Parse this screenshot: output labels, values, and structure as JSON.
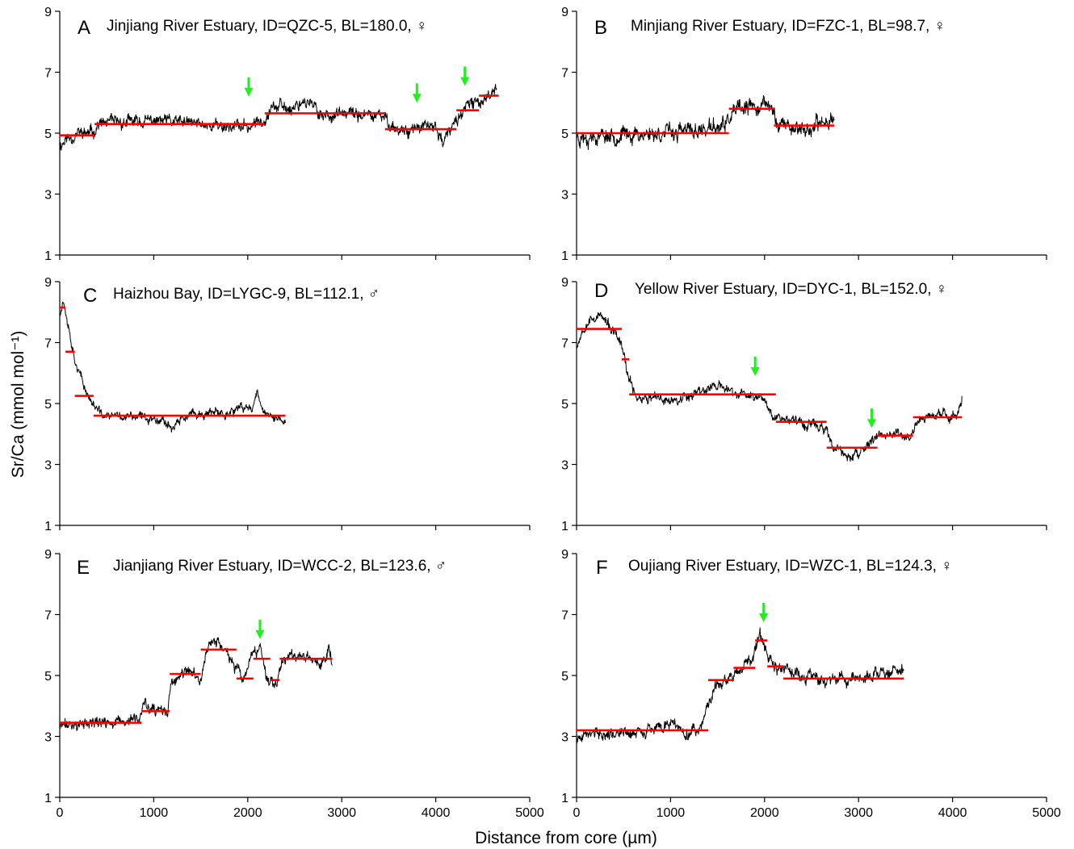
{
  "figure": {
    "ylabel": "Sr/Ca (mmol mol⁻¹)",
    "xlabel": "Distance from core (µm)",
    "series_color": "#000000",
    "segment_color": "#ff0000",
    "arrow_color": "#22ee22"
  },
  "chart_data": [
    {
      "type": "line",
      "letter": "A",
      "title": "Jinjiang River Estuary, ID=QZC-5, BL=180.0, ♀",
      "xlim": [
        0,
        5000
      ],
      "ylim": [
        1,
        9
      ],
      "xticks": [
        0,
        1000,
        2000,
        3000,
        4000,
        5000
      ],
      "yticks": [
        1,
        3,
        5,
        7,
        9
      ],
      "show_xtick_labels": false,
      "trace_end_um": 4650,
      "noise_amplitude": 0.22,
      "seed": 11,
      "profile": [
        [
          0,
          4.6
        ],
        [
          60,
          4.8
        ],
        [
          200,
          5.0
        ],
        [
          350,
          5.0
        ],
        [
          400,
          5.3
        ],
        [
          1000,
          5.4
        ],
        [
          1500,
          5.3
        ],
        [
          2000,
          5.2
        ],
        [
          2150,
          5.4
        ],
        [
          2250,
          5.9
        ],
        [
          2450,
          5.8
        ],
        [
          2600,
          6.1
        ],
        [
          2800,
          5.6
        ],
        [
          3200,
          5.6
        ],
        [
          3450,
          5.5
        ],
        [
          3600,
          5.1
        ],
        [
          4000,
          5.2
        ],
        [
          4080,
          4.7
        ],
        [
          4200,
          5.3
        ],
        [
          4300,
          5.8
        ],
        [
          4450,
          6.0
        ],
        [
          4550,
          6.2
        ],
        [
          4650,
          6.6
        ]
      ],
      "segments": [
        {
          "x0": 0,
          "x1": 370,
          "y": 4.93
        },
        {
          "x0": 370,
          "x1": 2180,
          "y": 5.3
        },
        {
          "x0": 2180,
          "x1": 3460,
          "y": 5.65
        },
        {
          "x0": 3460,
          "x1": 4220,
          "y": 5.13
        },
        {
          "x0": 4220,
          "x1": 4460,
          "y": 5.75
        },
        {
          "x0": 4460,
          "x1": 4670,
          "y": 6.23
        }
      ],
      "arrows": [
        {
          "x": 2010,
          "y": 6.2
        },
        {
          "x": 3800,
          "y": 6.0
        },
        {
          "x": 4310,
          "y": 6.55
        }
      ]
    },
    {
      "type": "line",
      "letter": "B",
      "title": "Minjiang River Estuary, ID=FZC-1, BL=98.7, ♀",
      "xlim": [
        0,
        5000
      ],
      "ylim": [
        1,
        9
      ],
      "xticks": [
        0,
        1000,
        2000,
        3000,
        4000,
        5000
      ],
      "yticks": [
        1,
        3,
        5,
        7,
        9
      ],
      "show_xtick_labels": false,
      "trace_end_um": 2740,
      "noise_amplitude": 0.28,
      "seed": 23,
      "profile": [
        [
          0,
          4.9
        ],
        [
          500,
          4.95
        ],
        [
          1200,
          5.05
        ],
        [
          1550,
          5.2
        ],
        [
          1700,
          5.7
        ],
        [
          2000,
          5.95
        ],
        [
          2080,
          5.8
        ],
        [
          2150,
          5.3
        ],
        [
          2500,
          5.1
        ],
        [
          2740,
          5.6
        ]
      ],
      "segments": [
        {
          "x0": 0,
          "x1": 1620,
          "y": 5.0
        },
        {
          "x0": 1620,
          "x1": 2100,
          "y": 5.8
        },
        {
          "x0": 2100,
          "x1": 2740,
          "y": 5.25
        }
      ],
      "arrows": []
    },
    {
      "type": "line",
      "letter": "C",
      "title": "Haizhou Bay, ID=LYGC-9, BL=112.1, ♂",
      "xlim": [
        0,
        5000
      ],
      "ylim": [
        1,
        9
      ],
      "xticks": [
        0,
        1000,
        2000,
        3000,
        4000,
        5000
      ],
      "yticks": [
        1,
        3,
        5,
        7,
        9
      ],
      "show_xtick_labels": false,
      "trace_end_um": 2400,
      "noise_amplitude": 0.16,
      "seed": 37,
      "profile": [
        [
          0,
          8.0
        ],
        [
          40,
          8.4
        ],
        [
          80,
          7.8
        ],
        [
          150,
          6.6
        ],
        [
          250,
          5.6
        ],
        [
          350,
          5.0
        ],
        [
          450,
          4.6
        ],
        [
          1100,
          4.5
        ],
        [
          1200,
          4.2
        ],
        [
          1350,
          4.6
        ],
        [
          1800,
          4.7
        ],
        [
          2050,
          4.9
        ],
        [
          2100,
          5.4
        ],
        [
          2200,
          4.6
        ],
        [
          2400,
          4.4
        ]
      ],
      "segments": [
        {
          "x0": 0,
          "x1": 60,
          "y": 8.15
        },
        {
          "x0": 60,
          "x1": 160,
          "y": 6.7
        },
        {
          "x0": 160,
          "x1": 360,
          "y": 5.25
        },
        {
          "x0": 360,
          "x1": 2400,
          "y": 4.6
        }
      ],
      "arrows": []
    },
    {
      "type": "line",
      "letter": "D",
      "title": "Yellow River Estuary, ID=DYC-1, BL=152.0, ♀",
      "xlim": [
        0,
        5000
      ],
      "ylim": [
        1,
        9
      ],
      "xticks": [
        0,
        1000,
        2000,
        3000,
        4000,
        5000
      ],
      "yticks": [
        1,
        3,
        5,
        7,
        9
      ],
      "show_xtick_labels": false,
      "trace_end_um": 4100,
      "noise_amplitude": 0.18,
      "seed": 53,
      "profile": [
        [
          0,
          6.9
        ],
        [
          100,
          7.7
        ],
        [
          250,
          7.9
        ],
        [
          400,
          7.3
        ],
        [
          480,
          6.9
        ],
        [
          550,
          5.8
        ],
        [
          650,
          5.2
        ],
        [
          1000,
          5.1
        ],
        [
          1500,
          5.6
        ],
        [
          1700,
          5.3
        ],
        [
          2000,
          5.2
        ],
        [
          2100,
          4.6
        ],
        [
          2500,
          4.3
        ],
        [
          2650,
          4.2
        ],
        [
          2700,
          3.6
        ],
        [
          2950,
          3.2
        ],
        [
          3100,
          3.6
        ],
        [
          3200,
          4.0
        ],
        [
          3550,
          3.9
        ],
        [
          3650,
          4.5
        ],
        [
          3900,
          4.6
        ],
        [
          4050,
          4.6
        ],
        [
          4100,
          5.3
        ]
      ],
      "segments": [
        {
          "x0": 0,
          "x1": 480,
          "y": 7.45
        },
        {
          "x0": 480,
          "x1": 560,
          "y": 6.45
        },
        {
          "x0": 560,
          "x1": 2120,
          "y": 5.3
        },
        {
          "x0": 2120,
          "x1": 2660,
          "y": 4.4
        },
        {
          "x0": 2660,
          "x1": 3200,
          "y": 3.55
        },
        {
          "x0": 3200,
          "x1": 3580,
          "y": 3.95
        },
        {
          "x0": 3580,
          "x1": 4100,
          "y": 4.55
        }
      ],
      "arrows": [
        {
          "x": 1900,
          "y": 5.9
        },
        {
          "x": 3140,
          "y": 4.2
        }
      ]
    },
    {
      "type": "line",
      "letter": "E",
      "title": "Jianjiang River Estuary, ID=WCC-2, BL=123.6, ♂",
      "xlim": [
        0,
        5000
      ],
      "ylim": [
        1,
        9
      ],
      "xticks": [
        0,
        1000,
        2000,
        3000,
        4000,
        5000
      ],
      "yticks": [
        1,
        3,
        5,
        7,
        9
      ],
      "show_xtick_labels": true,
      "trace_end_um": 2900,
      "noise_amplitude": 0.2,
      "seed": 71,
      "profile": [
        [
          0,
          3.35
        ],
        [
          400,
          3.45
        ],
        [
          700,
          3.45
        ],
        [
          850,
          3.6
        ],
        [
          900,
          4.2
        ],
        [
          950,
          3.8
        ],
        [
          1150,
          3.8
        ],
        [
          1180,
          4.7
        ],
        [
          1350,
          5.1
        ],
        [
          1500,
          4.9
        ],
        [
          1600,
          6.2
        ],
        [
          1750,
          5.9
        ],
        [
          1880,
          5.2
        ],
        [
          1950,
          4.8
        ],
        [
          2050,
          5.6
        ],
        [
          2130,
          5.9
        ],
        [
          2200,
          4.9
        ],
        [
          2300,
          4.8
        ],
        [
          2380,
          5.6
        ],
        [
          2600,
          5.7
        ],
        [
          2780,
          5.3
        ],
        [
          2860,
          6.0
        ],
        [
          2900,
          5.5
        ]
      ],
      "segments": [
        {
          "x0": 0,
          "x1": 870,
          "y": 3.45
        },
        {
          "x0": 870,
          "x1": 1170,
          "y": 3.83
        },
        {
          "x0": 1170,
          "x1": 1500,
          "y": 5.05
        },
        {
          "x0": 1500,
          "x1": 1880,
          "y": 5.85
        },
        {
          "x0": 1880,
          "x1": 2060,
          "y": 4.9
        },
        {
          "x0": 2060,
          "x1": 2240,
          "y": 5.55
        },
        {
          "x0": 2240,
          "x1": 2340,
          "y": 4.85
        },
        {
          "x0": 2340,
          "x1": 2900,
          "y": 5.55
        }
      ],
      "arrows": [
        {
          "x": 2130,
          "y": 6.2
        }
      ]
    },
    {
      "type": "line",
      "letter": "F",
      "title": "Oujiang River Estuary, ID=WZC-1, BL=124.3, ♀",
      "xlim": [
        0,
        5000
      ],
      "ylim": [
        1,
        9
      ],
      "xticks": [
        0,
        1000,
        2000,
        3000,
        4000,
        5000
      ],
      "yticks": [
        1,
        3,
        5,
        7,
        9
      ],
      "show_xtick_labels": true,
      "trace_end_um": 3480,
      "noise_amplitude": 0.22,
      "seed": 89,
      "profile": [
        [
          0,
          2.8
        ],
        [
          80,
          3.1
        ],
        [
          600,
          3.1
        ],
        [
          1000,
          3.4
        ],
        [
          1200,
          3.1
        ],
        [
          1300,
          3.2
        ],
        [
          1400,
          4.0
        ],
        [
          1500,
          4.7
        ],
        [
          1650,
          4.9
        ],
        [
          1850,
          5.5
        ],
        [
          1950,
          6.4
        ],
        [
          2000,
          6.0
        ],
        [
          2100,
          5.3
        ],
        [
          2300,
          5.0
        ],
        [
          2800,
          4.9
        ],
        [
          3300,
          5.0
        ],
        [
          3480,
          5.2
        ]
      ],
      "segments": [
        {
          "x0": 0,
          "x1": 1400,
          "y": 3.2
        },
        {
          "x0": 1400,
          "x1": 1670,
          "y": 4.85
        },
        {
          "x0": 1670,
          "x1": 1900,
          "y": 5.25
        },
        {
          "x0": 1900,
          "x1": 2030,
          "y": 6.15
        },
        {
          "x0": 2030,
          "x1": 2200,
          "y": 5.3
        },
        {
          "x0": 2200,
          "x1": 3480,
          "y": 4.9
        }
      ],
      "arrows": [
        {
          "x": 1990,
          "y": 6.75
        }
      ]
    }
  ]
}
